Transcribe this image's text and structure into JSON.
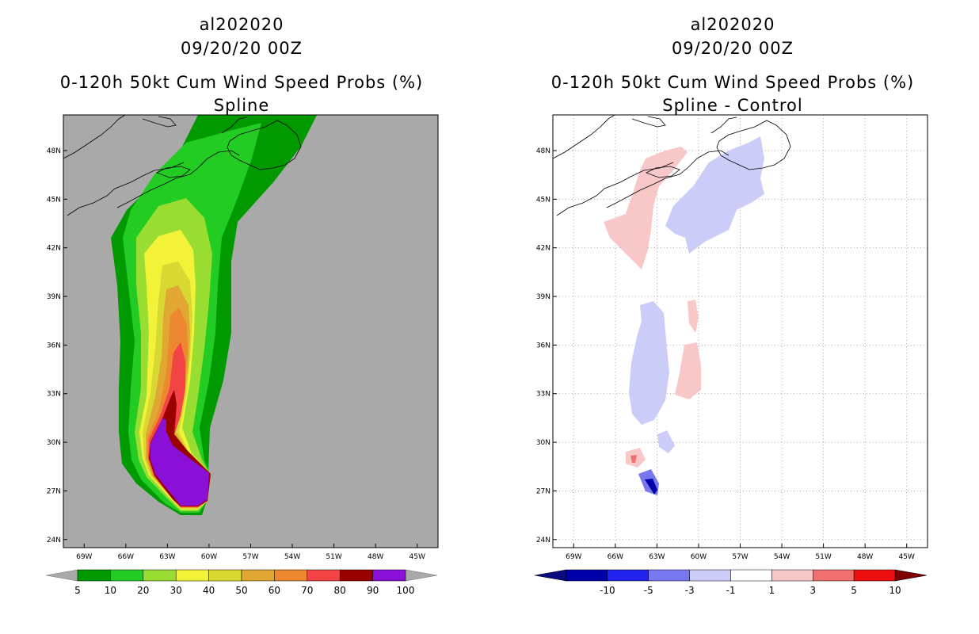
{
  "chart_data": [
    {
      "type": "heatmap",
      "panel": "left",
      "title_lines": [
        "al202020",
        "09/20/20 00Z",
        "0-120h 50kt Cum Wind Speed Probs (%)",
        "Spline"
      ],
      "xlabel": "",
      "ylabel": "",
      "x_ticks": [
        "69W",
        "66W",
        "63W",
        "60W",
        "57W",
        "54W",
        "51W",
        "48W",
        "45W"
      ],
      "y_ticks": [
        "48N",
        "45N",
        "42N",
        "39N",
        "36N",
        "33N",
        "30N",
        "27N",
        "24N"
      ],
      "xlim": [
        -70.5,
        -43.5
      ],
      "ylim": [
        23.5,
        50.2
      ],
      "background": "#a9a9a9",
      "legend": {
        "labels": [
          "5",
          "10",
          "20",
          "30",
          "40",
          "50",
          "60",
          "70",
          "80",
          "90",
          "100"
        ],
        "colors": [
          "#009900",
          "#22cc22",
          "#99dd33",
          "#f2f238",
          "#d8d832",
          "#e0a832",
          "#ee8830",
          "#f24444",
          "#990000",
          "#8a10d8"
        ]
      }
    },
    {
      "type": "heatmap",
      "panel": "right",
      "title_lines": [
        "al202020",
        "09/20/20 00Z",
        "0-120h 50kt Cum Wind Speed Probs (%)",
        "Spline - Control"
      ],
      "xlabel": "",
      "ylabel": "",
      "x_ticks": [
        "69W",
        "66W",
        "63W",
        "60W",
        "57W",
        "54W",
        "51W",
        "48W",
        "45W"
      ],
      "y_ticks": [
        "48N",
        "45N",
        "42N",
        "39N",
        "36N",
        "33N",
        "30N",
        "27N",
        "24N"
      ],
      "xlim": [
        -70.5,
        -43.5
      ],
      "ylim": [
        23.5,
        50.2
      ],
      "background": "#ffffff",
      "grid": true,
      "legend": {
        "labels": [
          "-10",
          "-5",
          "-3",
          "-1",
          "1",
          "3",
          "5",
          "10"
        ],
        "colors": [
          "#0000aa",
          "#2222ee",
          "#7777ee",
          "#ccccf8",
          "#ffffff",
          "#f8c8c8",
          "#f07070",
          "#ee1010"
        ]
      }
    }
  ]
}
